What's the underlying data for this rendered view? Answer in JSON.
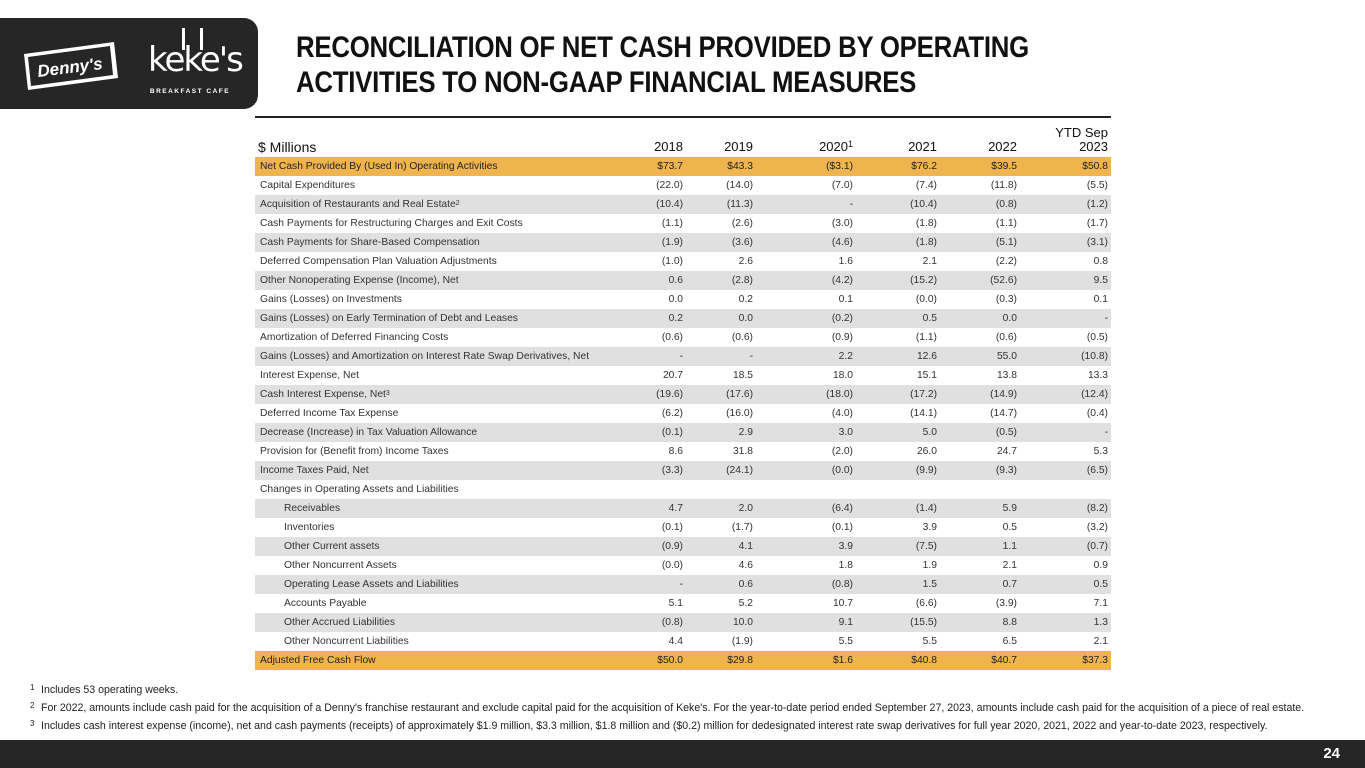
{
  "brand": {
    "dennys_logo_text": "Denny's",
    "kekes_logo_text": "keke's",
    "kekes_sub_text": "BREAKFAST CAFE"
  },
  "title": "RECONCILIATION OF NET CASH PROVIDED BY OPERATING ACTIVITIES TO NON-GAAP FINANCIAL MEASURES",
  "table": {
    "unit_label": "$ Millions",
    "columns": [
      {
        "label": "2018",
        "sup": ""
      },
      {
        "label": "2019",
        "sup": ""
      },
      {
        "label": "2020",
        "sup": "1"
      },
      {
        "label": "2021",
        "sup": ""
      },
      {
        "label": "2022",
        "sup": ""
      },
      {
        "label": "YTD Sep 2023",
        "sup": ""
      }
    ],
    "rows": [
      {
        "label": "Net Cash Provided By (Used In) Operating Activities",
        "sup": "",
        "indent": false,
        "style": "highlight",
        "values": [
          "$73.7",
          "$43.3",
          "($3.1)",
          "$76.2",
          "$39.5",
          "$50.8"
        ]
      },
      {
        "label": "Capital Expenditures",
        "sup": "",
        "indent": false,
        "style": "plain",
        "values": [
          "(22.0)",
          "(14.0)",
          "(7.0)",
          "(7.4)",
          "(11.8)",
          "(5.5)"
        ]
      },
      {
        "label": "Acquisition of Restaurants and Real Estate",
        "sup": "2",
        "indent": false,
        "style": "shade",
        "values": [
          "(10.4)",
          "(11.3)",
          "-",
          "(10.4)",
          "(0.8)",
          "(1.2)"
        ]
      },
      {
        "label": "Cash Payments for Restructuring Charges and Exit Costs",
        "sup": "",
        "indent": false,
        "style": "plain",
        "values": [
          "(1.1)",
          "(2.6)",
          "(3.0)",
          "(1.8)",
          "(1.1)",
          "(1.7)"
        ]
      },
      {
        "label": "Cash Payments for Share-Based Compensation",
        "sup": "",
        "indent": false,
        "style": "shade",
        "values": [
          "(1.9)",
          "(3.6)",
          "(4.6)",
          "(1.8)",
          "(5.1)",
          "(3.1)"
        ]
      },
      {
        "label": "Deferred Compensation Plan Valuation Adjustments",
        "sup": "",
        "indent": false,
        "style": "plain",
        "values": [
          "(1.0)",
          "2.6",
          "1.6",
          "2.1",
          "(2.2)",
          "0.8"
        ]
      },
      {
        "label": "Other Nonoperating Expense (Income), Net",
        "sup": "",
        "indent": false,
        "style": "shade",
        "values": [
          "0.6",
          "(2.8)",
          "(4.2)",
          "(15.2)",
          "(52.6)",
          "9.5"
        ]
      },
      {
        "label": "Gains (Losses) on Investments",
        "sup": "",
        "indent": false,
        "style": "plain",
        "values": [
          "0.0",
          "0.2",
          "0.1",
          "(0.0)",
          "(0.3)",
          "0.1"
        ]
      },
      {
        "label": "Gains (Losses) on Early Termination of Debt and Leases",
        "sup": "",
        "indent": false,
        "style": "shade",
        "values": [
          "0.2",
          "0.0",
          "(0.2)",
          "0.5",
          "0.0",
          "-"
        ]
      },
      {
        "label": "Amortization of Deferred Financing Costs",
        "sup": "",
        "indent": false,
        "style": "plain",
        "values": [
          "(0.6)",
          "(0.6)",
          "(0.9)",
          "(1.1)",
          "(0.6)",
          "(0.5)"
        ]
      },
      {
        "label": "Gains (Losses) and Amortization on Interest Rate Swap Derivatives, Net",
        "sup": "",
        "indent": false,
        "style": "shade",
        "values": [
          "-",
          "-",
          "2.2",
          "12.6",
          "55.0",
          "(10.8)"
        ]
      },
      {
        "label": "Interest Expense, Net",
        "sup": "",
        "indent": false,
        "style": "plain",
        "values": [
          "20.7",
          "18.5",
          "18.0",
          "15.1",
          "13.8",
          "13.3"
        ]
      },
      {
        "label": "Cash Interest Expense, Net",
        "sup": "3",
        "indent": false,
        "style": "shade",
        "values": [
          "(19.6)",
          "(17.6)",
          "(18.0)",
          "(17.2)",
          "(14.9)",
          "(12.4)"
        ]
      },
      {
        "label": "Deferred Income Tax Expense",
        "sup": "",
        "indent": false,
        "style": "plain",
        "values": [
          "(6.2)",
          "(16.0)",
          "(4.0)",
          "(14.1)",
          "(14.7)",
          "(0.4)"
        ]
      },
      {
        "label": "Decrease (Increase) in Tax Valuation Allowance",
        "sup": "",
        "indent": false,
        "style": "shade",
        "values": [
          "(0.1)",
          "2.9",
          "3.0",
          "5.0",
          "(0.5)",
          "-"
        ]
      },
      {
        "label": "Provision for (Benefit from) Income Taxes",
        "sup": "",
        "indent": false,
        "style": "plain",
        "values": [
          "8.6",
          "31.8",
          "(2.0)",
          "26.0",
          "24.7",
          "5.3"
        ]
      },
      {
        "label": "Income Taxes Paid, Net",
        "sup": "",
        "indent": false,
        "style": "shade",
        "values": [
          "(3.3)",
          "(24.1)",
          "(0.0)",
          "(9.9)",
          "(9.3)",
          "(6.5)"
        ]
      },
      {
        "label": "Changes in Operating Assets and Liabilities",
        "sup": "",
        "indent": false,
        "style": "plain",
        "values": [
          "",
          "",
          "",
          "",
          "",
          ""
        ]
      },
      {
        "label": "Receivables",
        "sup": "",
        "indent": true,
        "style": "shade",
        "values": [
          "4.7",
          "2.0",
          "(6.4)",
          "(1.4)",
          "5.9",
          "(8.2)"
        ]
      },
      {
        "label": "Inventories",
        "sup": "",
        "indent": true,
        "style": "plain",
        "values": [
          "(0.1)",
          "(1.7)",
          "(0.1)",
          "3.9",
          "0.5",
          "(3.2)"
        ]
      },
      {
        "label": "Other Current assets",
        "sup": "",
        "indent": true,
        "style": "shade",
        "values": [
          "(0.9)",
          "4.1",
          "3.9",
          "(7.5)",
          "1.1",
          "(0.7)"
        ]
      },
      {
        "label": "Other Noncurrent Assets",
        "sup": "",
        "indent": true,
        "style": "plain",
        "values": [
          "(0.0)",
          "4.6",
          "1.8",
          "1.9",
          "2.1",
          "0.9"
        ]
      },
      {
        "label": "Operating Lease Assets and Liabilities",
        "sup": "",
        "indent": true,
        "style": "shade",
        "values": [
          "-",
          "0.6",
          "(0.8)",
          "1.5",
          "0.7",
          "0.5"
        ]
      },
      {
        "label": "Accounts Payable",
        "sup": "",
        "indent": true,
        "style": "plain",
        "values": [
          "5.1",
          "5.2",
          "10.7",
          "(6.6)",
          "(3.9)",
          "7.1"
        ]
      },
      {
        "label": "Other Accrued Liabilities",
        "sup": "",
        "indent": true,
        "style": "shade",
        "values": [
          "(0.8)",
          "10.0",
          "9.1",
          "(15.5)",
          "8.8",
          "1.3"
        ]
      },
      {
        "label": "Other Noncurrent Liabilities",
        "sup": "",
        "indent": true,
        "style": "plain",
        "values": [
          "4.4",
          "(1.9)",
          "5.5",
          "5.5",
          "6.5",
          "2.1"
        ]
      },
      {
        "label": "Adjusted Free Cash Flow",
        "sup": "",
        "indent": false,
        "style": "highlight",
        "values": [
          "$50.0",
          "$29.8",
          "$1.6",
          "$40.8",
          "$40.7",
          "$37.3"
        ]
      }
    ]
  },
  "footnotes": [
    {
      "mark": "1",
      "text": "Includes 53 operating weeks."
    },
    {
      "mark": "2",
      "text": "For 2022, amounts include cash paid for the acquisition of a Denny's franchise restaurant and exclude capital paid for the acquisition of Keke's. For the year-to-date period ended September 27, 2023, amounts include cash paid for the acquisition of a piece of real estate."
    },
    {
      "mark": "3",
      "text": "Includes cash interest expense (income), net and cash payments (receipts) of approximately $1.9 million, $3.3 million, $1.8 million and ($0.2) million for dedesignated interest rate swap derivatives for full year 2020, 2021, 2022 and year-to-date 2023, respectively."
    }
  ],
  "page_number": "24",
  "colors": {
    "highlight_row": "#f0b44e",
    "shaded_row": "#e0e0e0",
    "dark_band": "#262626"
  }
}
